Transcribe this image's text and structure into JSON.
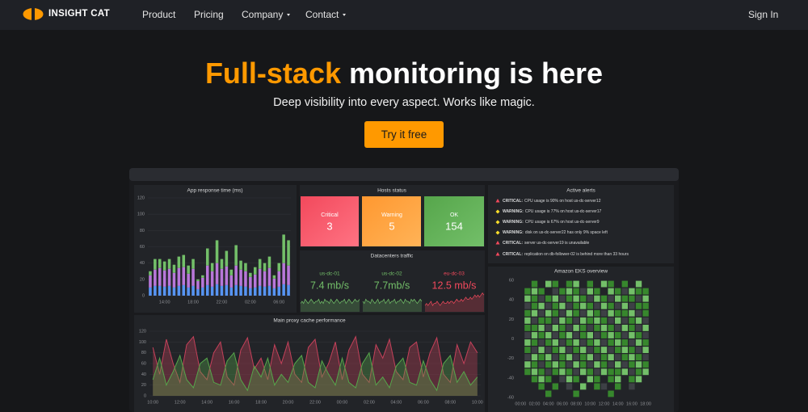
{
  "nav": {
    "brand": "INSIGHT CAT",
    "links": [
      "Product",
      "Pricing",
      "Company",
      "Contact"
    ],
    "sign_in": "Sign In"
  },
  "hero": {
    "title_accent": "Full-stack",
    "title_rest": "monitoring is here",
    "subtitle": "Deep visibility into every aspect. Works like magic.",
    "button": "Try it free"
  },
  "hosts": {
    "title": "Hosts status",
    "items": [
      {
        "label": "Critical",
        "value": 3
      },
      {
        "label": "Warning",
        "value": 5
      },
      {
        "label": "OK",
        "value": 154
      }
    ]
  },
  "traffic": {
    "title": "Datacenters traffic"
  },
  "alerts": {
    "title": "Active alerts",
    "items": [
      {
        "level": "CRITICAL:",
        "message": "CPU usage is 90% on host us-dc-server12"
      },
      {
        "level": "WARNING:",
        "message": "CPU usage is 77% on host us-dc-server17"
      },
      {
        "level": "WARNING:",
        "message": "CPU usage is 67% on host us-dc-server9"
      },
      {
        "level": "WARNING:",
        "message": "disk on us-dc-server22 has only 9% space left"
      },
      {
        "level": "CRITICAL:",
        "message": "server us-dc-server19 is unavailable"
      },
      {
        "level": "CRITICAL:",
        "message": "replication on db-follower-02 is behind more than 33 hours"
      }
    ]
  },
  "chart_data": [
    {
      "type": "bar",
      "title": "App response time (ms)",
      "stacked": true,
      "categories": [
        null,
        null,
        null,
        "14:00",
        null,
        null,
        null,
        null,
        null,
        "18:00",
        null,
        null,
        null,
        null,
        null,
        "22:00",
        null,
        null,
        null,
        null,
        null,
        "02:00",
        null,
        null,
        null,
        null,
        null,
        "06:00",
        null,
        null
      ],
      "series": [
        {
          "color": "#5794f2",
          "values": [
            10,
            12,
            12,
            11,
            12,
            10,
            12,
            13,
            10,
            12,
            8,
            10,
            13,
            11,
            14,
            12,
            13,
            10,
            13,
            12,
            11,
            9,
            10,
            12,
            11,
            12,
            9,
            11,
            14,
            13
          ]
        },
        {
          "color": "#b877d9",
          "values": [
            15,
            20,
            22,
            20,
            21,
            18,
            22,
            22,
            17,
            21,
            10,
            12,
            24,
            19,
            26,
            21,
            23,
            15,
            24,
            20,
            19,
            14,
            16,
            21,
            19,
            22,
            12,
            19,
            26,
            24
          ]
        },
        {
          "color": "#73bf69",
          "values": [
            5,
            13,
            11,
            11,
            12,
            10,
            14,
            15,
            10,
            12,
            2,
            3,
            21,
            10,
            28,
            12,
            19,
            7,
            25,
            11,
            10,
            5,
            9,
            12,
            10,
            14,
            4,
            10,
            35,
            31
          ]
        }
      ],
      "ylim": [
        0,
        120
      ],
      "yticks": [
        0,
        20,
        40,
        60,
        80,
        100,
        120
      ],
      "grid": true
    },
    {
      "type": "area",
      "title": "us-dc-01",
      "stat": "7.4 mb/s",
      "color": "#73bf69",
      "ylim": [
        0,
        10
      ],
      "values": [
        4,
        5,
        4,
        6,
        5,
        4,
        5,
        6,
        5,
        4,
        5,
        5,
        6,
        4,
        5,
        4,
        6,
        5,
        5,
        4,
        6,
        5,
        4,
        5,
        6,
        5,
        4,
        5,
        5,
        6,
        4,
        5,
        6,
        5,
        4,
        5,
        6,
        5,
        5,
        6
      ]
    },
    {
      "type": "area",
      "title": "us-dc-02",
      "stat": "7.7mb/s",
      "color": "#73bf69",
      "ylim": [
        0,
        10
      ],
      "values": [
        5,
        4,
        6,
        5,
        5,
        4,
        6,
        5,
        4,
        5,
        6,
        4,
        5,
        5,
        6,
        4,
        5,
        6,
        4,
        5,
        5,
        6,
        4,
        5,
        5,
        6,
        5,
        4,
        6,
        5,
        5,
        4,
        6,
        5,
        6,
        5,
        4,
        5,
        6,
        5
      ]
    },
    {
      "type": "area",
      "title": "eu-dc-03",
      "stat": "12.5 mb/s",
      "color": "#f2495c",
      "ylim": [
        0,
        10
      ],
      "values": [
        3,
        4,
        3,
        4,
        5,
        3,
        4,
        4,
        5,
        4,
        3,
        4,
        5,
        4,
        4,
        5,
        4,
        5,
        5,
        4,
        5,
        6,
        5,
        5,
        6,
        5,
        6,
        7,
        6,
        6,
        7,
        6,
        7,
        8,
        7,
        8,
        7,
        8,
        9,
        8
      ]
    },
    {
      "type": "line",
      "title": "Main proxy cache performance",
      "categories": [
        "10:00",
        null,
        null,
        null,
        "12:00",
        null,
        null,
        null,
        "14:00",
        null,
        null,
        null,
        "16:00",
        null,
        null,
        null,
        "18:00",
        null,
        null,
        null,
        "20:00",
        null,
        null,
        null,
        "22:00",
        null,
        null,
        null,
        "00:00",
        null,
        null,
        null,
        "02:00",
        null,
        null,
        null,
        "04:00",
        null,
        null,
        null,
        "06:00",
        null,
        null,
        null,
        "08:00",
        null,
        null,
        null,
        "10:00"
      ],
      "series": [
        {
          "color": "#c4415a",
          "values": [
            90,
            40,
            105,
            60,
            25,
            95,
            110,
            45,
            30,
            80,
            100,
            35,
            20,
            85,
            108,
            50,
            70,
            30,
            95,
            60,
            100,
            40,
            25,
            90,
            105,
            35,
            60,
            100,
            30,
            85,
            110,
            40,
            25,
            95,
            70,
            105,
            45,
            30,
            90,
            100,
            35,
            80,
            108,
            40,
            25,
            95,
            60,
            100,
            80
          ]
        },
        {
          "color": "#56a64b",
          "values": [
            30,
            70,
            20,
            45,
            75,
            30,
            15,
            60,
            70,
            25,
            20,
            65,
            80,
            30,
            10,
            55,
            35,
            70,
            20,
            40,
            25,
            60,
            75,
            25,
            15,
            65,
            40,
            20,
            70,
            25,
            15,
            60,
            80,
            20,
            35,
            15,
            55,
            70,
            25,
            20,
            65,
            30,
            10,
            60,
            75,
            25,
            45,
            20,
            35
          ]
        }
      ],
      "ylim": [
        0,
        120
      ],
      "yticks": [
        0,
        20,
        40,
        60,
        80,
        100,
        120
      ],
      "grid": true
    },
    {
      "type": "heatmap",
      "title": "Amazon EKS overview",
      "categories": [
        "00:00",
        null,
        "02:00",
        null,
        "04:00",
        null,
        "06:00",
        null,
        "08:00",
        null,
        "10:00",
        null,
        "12:00",
        null,
        "14:00",
        null,
        "16:00",
        null,
        "18:00",
        null
      ],
      "colors": [
        "#222428",
        "#3d4045",
        "#37872d",
        "#73bf69"
      ],
      "cells": [
        [
          0,
          0,
          2,
          0,
          3,
          2,
          0,
          2,
          3,
          0,
          2,
          0,
          3,
          2,
          0,
          2,
          0,
          3,
          0,
          0
        ],
        [
          0,
          2,
          3,
          2,
          0,
          1,
          2,
          3,
          2,
          1,
          3,
          2,
          0,
          3,
          2,
          1,
          3,
          2,
          2,
          0
        ],
        [
          0,
          3,
          2,
          1,
          2,
          3,
          1,
          2,
          3,
          2,
          1,
          3,
          2,
          1,
          3,
          2,
          2,
          1,
          3,
          0
        ],
        [
          0,
          1,
          2,
          3,
          1,
          2,
          3,
          1,
          2,
          3,
          2,
          1,
          3,
          2,
          1,
          3,
          1,
          2,
          2,
          0
        ],
        [
          0,
          2,
          3,
          1,
          3,
          2,
          1,
          3,
          2,
          1,
          3,
          2,
          1,
          3,
          2,
          2,
          3,
          1,
          2,
          0
        ],
        [
          0,
          3,
          1,
          2,
          2,
          1,
          3,
          2,
          1,
          3,
          2,
          3,
          2,
          1,
          3,
          1,
          2,
          3,
          1,
          0
        ],
        [
          0,
          2,
          2,
          3,
          1,
          3,
          2,
          1,
          3,
          2,
          1,
          2,
          3,
          2,
          1,
          3,
          2,
          1,
          3,
          0
        ],
        [
          0,
          1,
          3,
          2,
          3,
          1,
          2,
          3,
          1,
          2,
          3,
          1,
          2,
          3,
          2,
          1,
          3,
          2,
          1,
          0
        ],
        [
          0,
          3,
          2,
          1,
          2,
          3,
          1,
          2,
          3,
          1,
          2,
          3,
          1,
          2,
          3,
          2,
          1,
          3,
          2,
          0
        ],
        [
          0,
          2,
          1,
          3,
          1,
          2,
          3,
          1,
          2,
          3,
          1,
          2,
          3,
          1,
          2,
          3,
          2,
          1,
          3,
          0
        ],
        [
          0,
          1,
          3,
          2,
          3,
          1,
          2,
          3,
          1,
          2,
          3,
          1,
          2,
          3,
          1,
          2,
          3,
          2,
          1,
          0
        ],
        [
          0,
          3,
          2,
          1,
          2,
          3,
          2,
          1,
          3,
          2,
          1,
          3,
          2,
          1,
          3,
          1,
          2,
          3,
          2,
          0
        ],
        [
          0,
          2,
          3,
          2,
          1,
          2,
          3,
          2,
          1,
          3,
          2,
          1,
          3,
          2,
          2,
          3,
          1,
          2,
          3,
          0
        ],
        [
          0,
          0,
          2,
          3,
          2,
          0,
          1,
          3,
          2,
          0,
          3,
          2,
          0,
          2,
          3,
          0,
          2,
          3,
          0,
          0
        ],
        [
          0,
          0,
          0,
          2,
          0,
          2,
          0,
          1,
          0,
          3,
          0,
          2,
          1,
          0,
          2,
          0,
          1,
          0,
          0,
          0
        ],
        [
          0,
          0,
          0,
          0,
          2,
          0,
          0,
          0,
          2,
          0,
          0,
          0,
          0,
          2,
          0,
          0,
          0,
          0,
          0,
          0
        ]
      ],
      "ylim": [
        -60,
        60
      ],
      "yticks": [
        60,
        40,
        20,
        0,
        -20,
        -40,
        -60
      ]
    }
  ]
}
